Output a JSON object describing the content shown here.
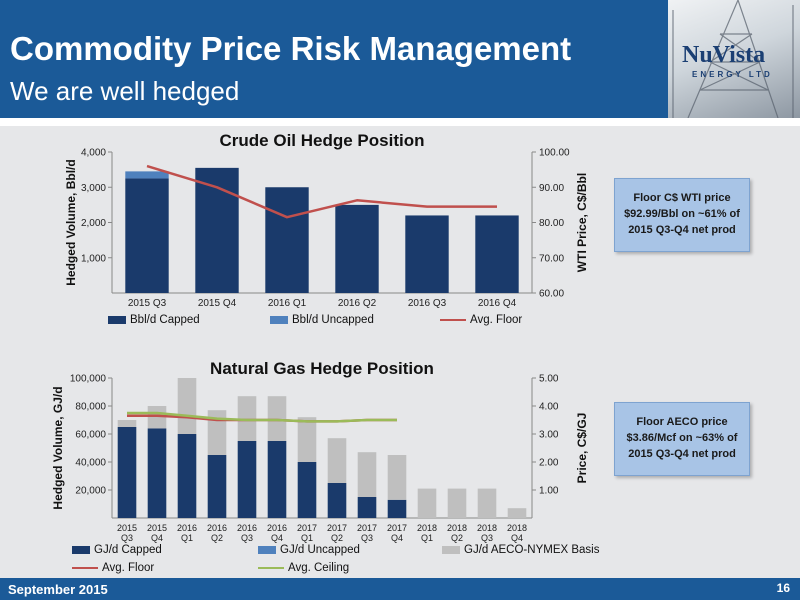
{
  "header": {
    "title": "Commodity Price Risk Management",
    "subtitle": "We are well hedged"
  },
  "logo": {
    "main": "NuVista",
    "sub": "ENERGY LTD"
  },
  "footer": {
    "date": "September 2015",
    "page": "16"
  },
  "callouts": {
    "oil": "Floor C$ WTI price\n$92.99/Bbl on ~61% of\n2015 Q3-Q4 net prod",
    "gas": "Floor AECO price\n$3.86/Mcf on  ~63% of\n2015 Q3-Q4  net prod"
  },
  "colors": {
    "header": "#1b5a98",
    "capped": "#1a3a6b",
    "uncapped": "#4f81bd",
    "basis": "#bfbfbf",
    "floor": "#c0504d",
    "ceiling": "#9bbb59"
  },
  "chart_data": [
    {
      "type": "bar",
      "title": "Crude Oil Hedge Position",
      "xlabel": "",
      "ylabel": "Hedged Volume, Bbl/d",
      "y2label": "WTI Price, C$/Bbl",
      "categories": [
        "2015 Q3",
        "2015 Q4",
        "2016 Q1",
        "2016 Q2",
        "2016 Q3",
        "2016 Q4"
      ],
      "ylim": [
        0,
        4000
      ],
      "yticks": [
        1000,
        2000,
        3000,
        4000
      ],
      "ytick_labels": [
        "1,000",
        "2,000",
        "3,000",
        "4,000"
      ],
      "y2lim": [
        60,
        100
      ],
      "y2ticks": [
        60,
        70,
        80,
        90,
        100
      ],
      "y2tick_labels": [
        "60.00",
        "70.00",
        "80.00",
        "90.00",
        "100.00"
      ],
      "series": [
        {
          "name": "Bbl/d Capped",
          "kind": "bar",
          "color": "#1a3a6b",
          "values": [
            3250,
            3550,
            3000,
            2500,
            2200,
            2200
          ]
        },
        {
          "name": "Bbl/d Uncapped",
          "kind": "bar",
          "color": "#4f81bd",
          "values": [
            200,
            0,
            0,
            0,
            0,
            0
          ]
        },
        {
          "name": "Avg. Floor",
          "kind": "line",
          "axis": "y2",
          "color": "#c0504d",
          "values": [
            96.0,
            90.0,
            81.5,
            86.3,
            84.5,
            84.5
          ]
        }
      ],
      "legend": "bottom",
      "grid": false
    },
    {
      "type": "bar",
      "title": "Natural Gas Hedge Position",
      "xlabel": "",
      "ylabel": "Hedged Volume, GJ/d",
      "y2label": "Price, C$/GJ",
      "categories": [
        "2015 Q3",
        "2015 Q4",
        "2016 Q1",
        "2016 Q2",
        "2016 Q3",
        "2016 Q4",
        "2017 Q1",
        "2017 Q2",
        "2017 Q3",
        "2017 Q4",
        "2018 Q1",
        "2018 Q2",
        "2018 Q3",
        "2018 Q4"
      ],
      "ylim": [
        0,
        100000
      ],
      "yticks": [
        20000,
        40000,
        60000,
        80000,
        100000
      ],
      "ytick_labels": [
        "20,000",
        "40,000",
        "60,000",
        "80,000",
        "100,000"
      ],
      "y2lim": [
        0,
        5
      ],
      "y2ticks": [
        1,
        2,
        3,
        4,
        5
      ],
      "y2tick_labels": [
        "1.00",
        "2.00",
        "3.00",
        "4.00",
        "5.00"
      ],
      "series": [
        {
          "name": "GJ/d Capped",
          "kind": "bar",
          "color": "#1a3a6b",
          "values": [
            65000,
            64000,
            60000,
            45000,
            55000,
            55000,
            40000,
            25000,
            15000,
            13000,
            0,
            0,
            0,
            0
          ]
        },
        {
          "name": "GJ/d Uncapped",
          "kind": "bar",
          "color": "#4f81bd",
          "values": [
            0,
            0,
            0,
            0,
            0,
            0,
            0,
            0,
            0,
            0,
            0,
            0,
            0,
            0
          ]
        },
        {
          "name": "GJ/d AECO-NYMEX Basis",
          "kind": "bar",
          "color": "#bfbfbf",
          "values": [
            5000,
            16000,
            40000,
            32000,
            32000,
            32000,
            32000,
            32000,
            32000,
            32000,
            21000,
            21000,
            21000,
            7000
          ]
        },
        {
          "name": "Avg. Floor",
          "kind": "line",
          "axis": "y2",
          "color": "#c0504d",
          "values": [
            3.65,
            3.65,
            3.6,
            3.5,
            3.5,
            3.5,
            3.45,
            3.45,
            3.5,
            3.5,
            null,
            null,
            null,
            null
          ]
        },
        {
          "name": "Avg. Ceiling",
          "kind": "line",
          "axis": "y2",
          "color": "#9bbb59",
          "values": [
            3.75,
            3.75,
            3.65,
            3.55,
            3.5,
            3.5,
            3.45,
            3.45,
            3.5,
            3.5,
            null,
            null,
            null,
            null
          ]
        }
      ],
      "legend": "bottom",
      "grid": false
    }
  ]
}
